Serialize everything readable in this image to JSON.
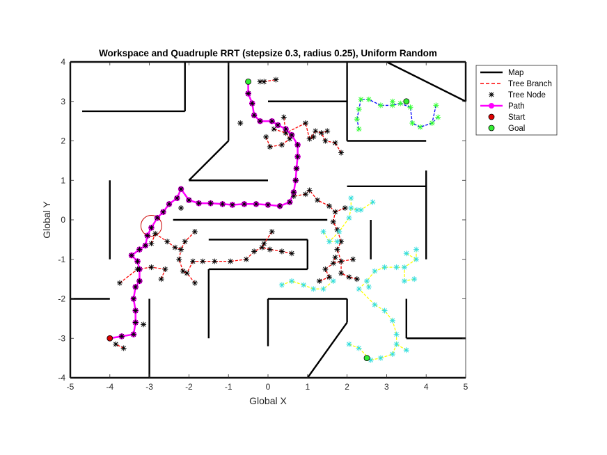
{
  "chart_data": {
    "type": "scatter",
    "title": "Workspace and Quadruple RRT (stepsize 0.3, radius 0.25), Uniform Random",
    "xlabel": "Global X",
    "ylabel": "Global Y",
    "xlim": [
      -5,
      5
    ],
    "ylim": [
      -4,
      4
    ],
    "xticks": [
      "-5",
      "-4",
      "-3",
      "-2",
      "-1",
      "0",
      "1",
      "2",
      "3",
      "4",
      "5"
    ],
    "yticks": [
      "4",
      "3",
      "2",
      "1",
      "0",
      "-1",
      "-2",
      "-3",
      "-4"
    ],
    "grid": false,
    "legend_position": "outside-top-right",
    "legend": [
      "Map",
      "Tree Branch",
      "Tree Node",
      "Path",
      "Start",
      "Goal"
    ],
    "colors": {
      "map": "#000000",
      "branch_red": "#ff0000",
      "branch_blue": "#0000ff",
      "branch_yellow": "#ffff00",
      "node_black": "#000000",
      "node_green": "#33ff33",
      "node_cyan": "#33dddd",
      "path": "#ff00ff",
      "start": "#dd0000",
      "goal": "#33ee33",
      "circle": "#cc0000"
    },
    "map_segments": [
      [
        [
          -5,
          4
        ],
        [
          5,
          4
        ]
      ],
      [
        [
          -5,
          4
        ],
        [
          -5,
          -4
        ]
      ],
      [
        [
          -5,
          -4
        ],
        [
          5,
          -4
        ]
      ],
      [
        [
          5,
          4
        ],
        [
          5,
          3
        ]
      ],
      [
        [
          -4.7,
          2.75
        ],
        [
          -2.1,
          2.75
        ]
      ],
      [
        [
          -2.1,
          2.75
        ],
        [
          -2.1,
          4
        ]
      ],
      [
        [
          -1,
          4
        ],
        [
          -1,
          2
        ]
      ],
      [
        [
          -1,
          2
        ],
        [
          -2,
          1
        ]
      ],
      [
        [
          -2,
          1
        ],
        [
          0,
          1
        ]
      ],
      [
        [
          0,
          3
        ],
        [
          2,
          3
        ]
      ],
      [
        [
          2,
          4
        ],
        [
          2,
          2
        ]
      ],
      [
        [
          2,
          2
        ],
        [
          4,
          2
        ]
      ],
      [
        [
          3,
          4
        ],
        [
          5,
          3
        ]
      ],
      [
        [
          -4,
          1
        ],
        [
          -4,
          -1
        ]
      ],
      [
        [
          -2.4,
          0
        ],
        [
          1.5,
          0
        ]
      ],
      [
        [
          -1.5,
          -0.5
        ],
        [
          1,
          -0.5
        ]
      ],
      [
        [
          1,
          -0.5
        ],
        [
          1,
          -1.25
        ]
      ],
      [
        [
          1,
          -1.25
        ],
        [
          -1.5,
          -1.25
        ]
      ],
      [
        [
          -1.5,
          -1.25
        ],
        [
          -1.5,
          -3
        ]
      ],
      [
        [
          0,
          -2
        ],
        [
          2,
          -2
        ]
      ],
      [
        [
          0,
          -2
        ],
        [
          0,
          -3.2
        ]
      ],
      [
        [
          2,
          -2
        ],
        [
          2,
          -2.6
        ]
      ],
      [
        [
          2,
          -2.6
        ],
        [
          1,
          -4
        ]
      ],
      [
        [
          -5,
          -2
        ],
        [
          -4,
          -2
        ]
      ],
      [
        [
          -3,
          -2
        ],
        [
          -3,
          -4
        ]
      ],
      [
        [
          2,
          0.85
        ],
        [
          4,
          0.85
        ]
      ],
      [
        [
          4,
          1.25
        ],
        [
          4,
          -1
        ]
      ],
      [
        [
          2.6,
          0
        ],
        [
          2.6,
          -1
        ]
      ],
      [
        [
          3.5,
          -2
        ],
        [
          3.5,
          -3
        ]
      ],
      [
        [
          3.5,
          -3
        ],
        [
          5,
          -3
        ]
      ]
    ],
    "path": [
      [
        -4,
        -3
      ],
      [
        -3.7,
        -2.95
      ],
      [
        -3.4,
        -2.9
      ],
      [
        -3.35,
        -2.6
      ],
      [
        -3.35,
        -2.3
      ],
      [
        -3.4,
        -2
      ],
      [
        -3.35,
        -1.7
      ],
      [
        -3.25,
        -1.55
      ],
      [
        -3.25,
        -1.25
      ],
      [
        -3.3,
        -1.05
      ],
      [
        -3.45,
        -0.9
      ],
      [
        -3.25,
        -0.75
      ],
      [
        -3.1,
        -0.65
      ],
      [
        -3.05,
        -0.4
      ],
      [
        -2.95,
        -0.2
      ],
      [
        -2.8,
        0.05
      ],
      [
        -2.65,
        0.2
      ],
      [
        -2.5,
        0.4
      ],
      [
        -2.3,
        0.55
      ],
      [
        -2.2,
        0.78
      ],
      [
        -2,
        0.5
      ],
      [
        -1.75,
        0.42
      ],
      [
        -1.45,
        0.42
      ],
      [
        -1.15,
        0.4
      ],
      [
        -0.9,
        0.38
      ],
      [
        -0.6,
        0.4
      ],
      [
        -0.3,
        0.4
      ],
      [
        0,
        0.38
      ],
      [
        0.3,
        0.35
      ],
      [
        0.55,
        0.45
      ],
      [
        0.65,
        0.7
      ],
      [
        0.7,
        1
      ],
      [
        0.72,
        1.3
      ],
      [
        0.75,
        1.6
      ],
      [
        0.75,
        1.9
      ],
      [
        0.6,
        2.15
      ],
      [
        0.45,
        2.3
      ],
      [
        0.25,
        2.4
      ],
      [
        0.1,
        2.5
      ],
      [
        -0.2,
        2.5
      ],
      [
        -0.35,
        2.65
      ],
      [
        -0.4,
        2.95
      ],
      [
        -0.5,
        3.2
      ],
      [
        -0.5,
        3.5
      ]
    ],
    "black_nodes": [
      [
        -3.85,
        -3.15
      ],
      [
        -3.65,
        -3.25
      ],
      [
        -3.15,
        -2.65
      ],
      [
        -3.3,
        -1.25
      ],
      [
        -3.75,
        -1.6
      ],
      [
        -2.95,
        -1.2
      ],
      [
        -2.6,
        -1.25
      ],
      [
        -2.7,
        -1.5
      ],
      [
        -2.55,
        -0.55
      ],
      [
        -2.35,
        -0.7
      ],
      [
        -2.2,
        -0.75
      ],
      [
        -2.1,
        -0.55
      ],
      [
        -1.85,
        -0.3
      ],
      [
        -2.25,
        -1
      ],
      [
        -2.15,
        -1.3
      ],
      [
        -2.05,
        -1.35
      ],
      [
        -1.85,
        -1.6
      ],
      [
        -1.9,
        -1.05
      ],
      [
        -1.65,
        -1.05
      ],
      [
        -1.35,
        -1.05
      ],
      [
        -0.95,
        -1.05
      ],
      [
        -0.55,
        -1
      ],
      [
        -0.35,
        -0.8
      ],
      [
        -0.15,
        -0.7
      ],
      [
        -0.1,
        -0.6
      ],
      [
        0.05,
        -0.75
      ],
      [
        0.1,
        -0.3
      ],
      [
        0.35,
        -0.8
      ],
      [
        0.6,
        -0.85
      ],
      [
        -2.85,
        -0.35
      ],
      [
        -2.95,
        -0.6
      ],
      [
        -2.2,
        0.3
      ],
      [
        0.65,
        0.6
      ],
      [
        0.95,
        0.65
      ],
      [
        1.05,
        0.75
      ],
      [
        1.25,
        0.5
      ],
      [
        1.55,
        0.35
      ],
      [
        1.7,
        0.2
      ],
      [
        1.95,
        0.3
      ],
      [
        1.65,
        -0.05
      ],
      [
        1.75,
        -0.25
      ],
      [
        1.85,
        -0.55
      ],
      [
        1.75,
        -0.75
      ],
      [
        1.85,
        -1.05
      ],
      [
        1.65,
        -1.1
      ],
      [
        1.45,
        -1.25
      ],
      [
        1.55,
        -1.45
      ],
      [
        1.85,
        -1.35
      ],
      [
        2.05,
        -1.45
      ],
      [
        2.25,
        -1.5
      ],
      [
        2.15,
        -1
      ],
      [
        1.7,
        -0.95
      ],
      [
        1.3,
        -1.55
      ],
      [
        0.4,
        2.6
      ],
      [
        0.45,
        2.2
      ],
      [
        0.15,
        2.3
      ],
      [
        0.55,
        2.05
      ],
      [
        0.95,
        2.45
      ],
      [
        1.05,
        2.05
      ],
      [
        1.2,
        2.25
      ],
      [
        1.35,
        2.2
      ],
      [
        1.5,
        2.25
      ],
      [
        1.45,
        2
      ],
      [
        1.15,
        2.1
      ],
      [
        1.7,
        1.95
      ],
      [
        1.85,
        1.7
      ],
      [
        0.35,
        1.9
      ],
      [
        0.05,
        1.85
      ],
      [
        -0.05,
        2.1
      ],
      [
        -0.7,
        2.45
      ],
      [
        0.2,
        3.55
      ],
      [
        -0.1,
        3.5
      ],
      [
        -0.2,
        3.5
      ]
    ],
    "green_nodes": [
      [
        2.3,
        2.8
      ],
      [
        2.35,
        3.05
      ],
      [
        2.55,
        3.05
      ],
      [
        2.85,
        2.9
      ],
      [
        3.15,
        2.9
      ],
      [
        3.35,
        2.95
      ],
      [
        3.6,
        2.85
      ],
      [
        3.65,
        2.45
      ],
      [
        3.85,
        2.35
      ],
      [
        4.15,
        2.45
      ],
      [
        4.25,
        2.9
      ],
      [
        4.3,
        2.6
      ],
      [
        2.25,
        2.55
      ],
      [
        2.3,
        2.3
      ],
      [
        3.15,
        3.0
      ]
    ],
    "cyan_nodes": [
      [
        1.4,
        -0.3
      ],
      [
        1.55,
        -0.55
      ],
      [
        1.8,
        -0.3
      ],
      [
        1.75,
        -0.55
      ],
      [
        2.05,
        0.05
      ],
      [
        2.1,
        0.3
      ],
      [
        2.25,
        0.25
      ],
      [
        2.35,
        0.25
      ],
      [
        2.1,
        0.55
      ],
      [
        2.65,
        0.45
      ],
      [
        2.3,
        -1.75
      ],
      [
        2.5,
        -1.55
      ],
      [
        2.7,
        -1.3
      ],
      [
        2.95,
        -1.2
      ],
      [
        3.25,
        -1.2
      ],
      [
        3.45,
        -1.2
      ],
      [
        3.75,
        -1
      ],
      [
        3.5,
        -0.85
      ],
      [
        3.45,
        -1.55
      ],
      [
        3.7,
        -1.5
      ],
      [
        2.7,
        -2.15
      ],
      [
        2.95,
        -2.3
      ],
      [
        3.15,
        -2.55
      ],
      [
        3.25,
        -2.9
      ],
      [
        3.25,
        -3.15
      ],
      [
        3.15,
        -3.4
      ],
      [
        2.85,
        -3.5
      ],
      [
        2.6,
        -3.55
      ],
      [
        2.3,
        -3.25
      ],
      [
        2.05,
        -3.15
      ],
      [
        3.5,
        -3.3
      ],
      [
        0.35,
        -1.65
      ],
      [
        0.6,
        -1.55
      ],
      [
        0.9,
        -1.65
      ],
      [
        1.15,
        -1.75
      ],
      [
        1.4,
        -1.75
      ],
      [
        1.65,
        -1.55
      ],
      [
        2.55,
        -1.7
      ],
      [
        3.75,
        -0.75
      ]
    ]
  }
}
